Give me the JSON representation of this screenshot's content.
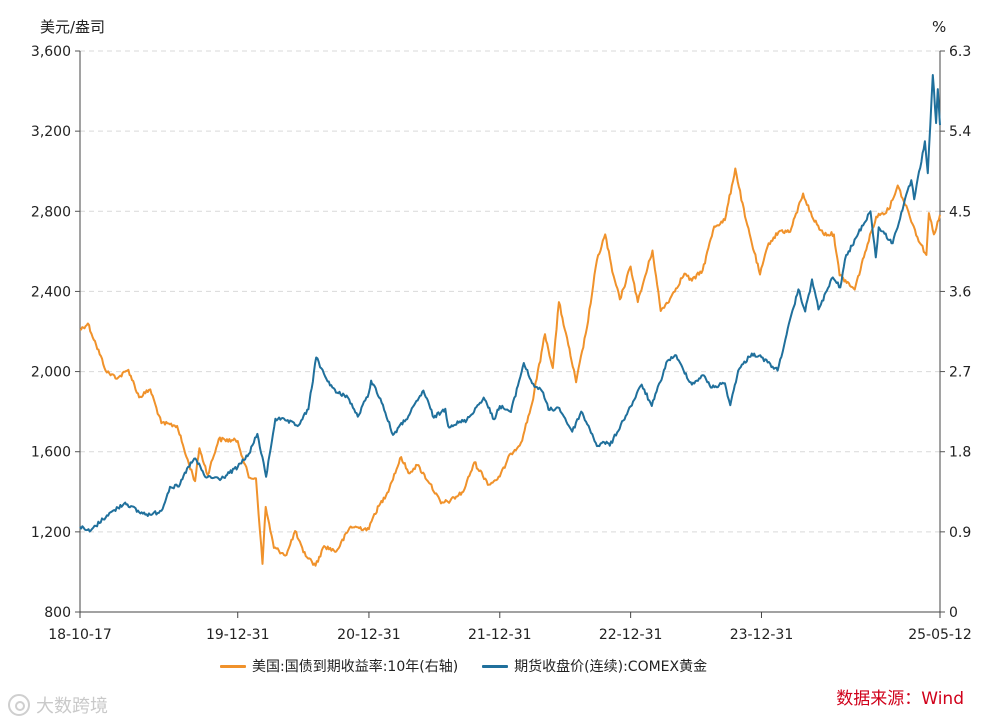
{
  "chart_data": {
    "type": "line",
    "left_unit": "美元/盎司",
    "right_unit": "%",
    "left_axis": {
      "ylim": [
        800,
        3600
      ],
      "ticks": [
        "800",
        "1,200",
        "1,600",
        "2,000",
        "2,400",
        "2,800",
        "3,200",
        "3,600"
      ]
    },
    "right_axis": {
      "ylim": [
        0,
        6.3
      ],
      "ticks": [
        "0",
        "0.9",
        "1.8",
        "2.7",
        "3.6",
        "4.5",
        "5.4",
        "6.3"
      ]
    },
    "x_range": [
      "2018-10-17",
      "2025-05-12"
    ],
    "x_ticks": [
      {
        "date": "2018-10-17",
        "label": "18-10-17"
      },
      {
        "date": "2019-12-31",
        "label": "19-12-31"
      },
      {
        "date": "2020-12-31",
        "label": "20-12-31"
      },
      {
        "date": "2021-12-31",
        "label": "21-12-31"
      },
      {
        "date": "2022-12-31",
        "label": "22-12-31"
      },
      {
        "date": "2023-12-31",
        "label": "23-12-31"
      },
      {
        "date": "2025-05-12",
        "label": "25-05-12"
      }
    ],
    "grid": "horizontal-dashed",
    "legend_position": "bottom",
    "series": [
      {
        "name": "美国:国债到期收益率:10年(右轴)",
        "axis": "right",
        "color": "#f0922b",
        "points": [
          [
            "2018-10-17",
            3.17
          ],
          [
            "2018-11-08",
            3.24
          ],
          [
            "2018-12-01",
            3.0
          ],
          [
            "2018-12-31",
            2.69
          ],
          [
            "2019-01-31",
            2.63
          ],
          [
            "2019-03-01",
            2.72
          ],
          [
            "2019-03-31",
            2.41
          ],
          [
            "2019-05-01",
            2.5
          ],
          [
            "2019-06-01",
            2.12
          ],
          [
            "2019-07-15",
            2.09
          ],
          [
            "2019-08-10",
            1.74
          ],
          [
            "2019-09-03",
            1.47
          ],
          [
            "2019-09-15",
            1.84
          ],
          [
            "2019-10-08",
            1.54
          ],
          [
            "2019-11-08",
            1.94
          ],
          [
            "2019-12-31",
            1.92
          ],
          [
            "2020-01-31",
            1.51
          ],
          [
            "2020-02-20",
            1.5
          ],
          [
            "2020-03-09",
            0.54
          ],
          [
            "2020-03-18",
            1.18
          ],
          [
            "2020-04-10",
            0.72
          ],
          [
            "2020-05-15",
            0.64
          ],
          [
            "2020-06-08",
            0.91
          ],
          [
            "2020-07-01",
            0.67
          ],
          [
            "2020-08-04",
            0.52
          ],
          [
            "2020-08-28",
            0.74
          ],
          [
            "2020-10-01",
            0.68
          ],
          [
            "2020-11-10",
            0.96
          ],
          [
            "2020-12-31",
            0.93
          ],
          [
            "2021-01-15",
            1.1
          ],
          [
            "2021-02-20",
            1.34
          ],
          [
            "2021-03-31",
            1.74
          ],
          [
            "2021-04-20",
            1.56
          ],
          [
            "2021-05-15",
            1.65
          ],
          [
            "2021-06-20",
            1.44
          ],
          [
            "2021-07-20",
            1.22
          ],
          [
            "2021-08-15",
            1.25
          ],
          [
            "2021-09-20",
            1.35
          ],
          [
            "2021-10-21",
            1.68
          ],
          [
            "2021-12-01",
            1.43
          ],
          [
            "2021-12-31",
            1.52
          ],
          [
            "2022-01-31",
            1.78
          ],
          [
            "2022-02-28",
            1.9
          ],
          [
            "2022-03-31",
            2.34
          ],
          [
            "2022-05-06",
            3.12
          ],
          [
            "2022-05-28",
            2.74
          ],
          [
            "2022-06-14",
            3.48
          ],
          [
            "2022-07-10",
            3.0
          ],
          [
            "2022-08-01",
            2.58
          ],
          [
            "2022-08-31",
            3.19
          ],
          [
            "2022-09-28",
            3.95
          ],
          [
            "2022-10-21",
            4.24
          ],
          [
            "2022-11-10",
            3.82
          ],
          [
            "2022-12-01",
            3.51
          ],
          [
            "2022-12-31",
            3.88
          ],
          [
            "2023-01-20",
            3.48
          ],
          [
            "2023-03-02",
            4.06
          ],
          [
            "2023-03-25",
            3.38
          ],
          [
            "2023-04-20",
            3.52
          ],
          [
            "2023-05-30",
            3.8
          ],
          [
            "2023-06-20",
            3.72
          ],
          [
            "2023-07-20",
            3.84
          ],
          [
            "2023-08-21",
            4.33
          ],
          [
            "2023-09-20",
            4.4
          ],
          [
            "2023-10-19",
            4.98
          ],
          [
            "2023-11-15",
            4.44
          ],
          [
            "2023-12-27",
            3.79
          ],
          [
            "2024-01-20",
            4.14
          ],
          [
            "2024-02-20",
            4.28
          ],
          [
            "2024-03-20",
            4.27
          ],
          [
            "2024-04-25",
            4.7
          ],
          [
            "2024-05-20",
            4.44
          ],
          [
            "2024-06-20",
            4.25
          ],
          [
            "2024-07-20",
            4.24
          ],
          [
            "2024-08-05",
            3.78
          ],
          [
            "2024-09-16",
            3.62
          ],
          [
            "2024-10-15",
            4.04
          ],
          [
            "2024-11-15",
            4.44
          ],
          [
            "2024-12-20",
            4.52
          ],
          [
            "2025-01-14",
            4.79
          ],
          [
            "2025-02-14",
            4.48
          ],
          [
            "2025-03-10",
            4.21
          ],
          [
            "2025-04-04",
            4.01
          ],
          [
            "2025-04-11",
            4.48
          ],
          [
            "2025-04-25",
            4.24
          ],
          [
            "2025-05-12",
            4.46
          ]
        ]
      },
      {
        "name": "期货收盘价(连续):COMEX黄金",
        "axis": "left",
        "color": "#20709c",
        "points": [
          [
            "2018-10-17",
            1225
          ],
          [
            "2018-11-13",
            1202
          ],
          [
            "2018-12-31",
            1282
          ],
          [
            "2019-01-31",
            1320
          ],
          [
            "2019-02-20",
            1346
          ],
          [
            "2019-03-31",
            1298
          ],
          [
            "2019-05-01",
            1285
          ],
          [
            "2019-06-01",
            1305
          ],
          [
            "2019-06-25",
            1425
          ],
          [
            "2019-07-20",
            1426
          ],
          [
            "2019-08-15",
            1525
          ],
          [
            "2019-09-04",
            1566
          ],
          [
            "2019-10-01",
            1475
          ],
          [
            "2019-11-15",
            1465
          ],
          [
            "2019-12-31",
            1523
          ],
          [
            "2020-01-31",
            1589
          ],
          [
            "2020-02-24",
            1689
          ],
          [
            "2020-03-19",
            1475
          ],
          [
            "2020-04-14",
            1765
          ],
          [
            "2020-05-15",
            1755
          ],
          [
            "2020-06-15",
            1728
          ],
          [
            "2020-07-15",
            1812
          ],
          [
            "2020-08-06",
            2070
          ],
          [
            "2020-08-31",
            1975
          ],
          [
            "2020-09-30",
            1895
          ],
          [
            "2020-10-30",
            1880
          ],
          [
            "2020-11-30",
            1775
          ],
          [
            "2020-12-31",
            1895
          ],
          [
            "2021-01-06",
            1955
          ],
          [
            "2021-02-01",
            1865
          ],
          [
            "2021-03-08",
            1684
          ],
          [
            "2021-04-20",
            1778
          ],
          [
            "2021-06-01",
            1905
          ],
          [
            "2021-06-30",
            1770
          ],
          [
            "2021-08-01",
            1814
          ],
          [
            "2021-08-09",
            1728
          ],
          [
            "2021-09-30",
            1758
          ],
          [
            "2021-11-16",
            1870
          ],
          [
            "2021-12-15",
            1762
          ],
          [
            "2021-12-31",
            1828
          ],
          [
            "2022-01-31",
            1798
          ],
          [
            "2022-03-08",
            2043
          ],
          [
            "2022-03-31",
            1942
          ],
          [
            "2022-05-01",
            1895
          ],
          [
            "2022-05-16",
            1809
          ],
          [
            "2022-06-15",
            1818
          ],
          [
            "2022-07-21",
            1700
          ],
          [
            "2022-08-15",
            1800
          ],
          [
            "2022-09-15",
            1688
          ],
          [
            "2022-09-28",
            1628
          ],
          [
            "2022-10-25",
            1650
          ],
          [
            "2022-11-03",
            1630
          ],
          [
            "2022-12-31",
            1826
          ],
          [
            "2023-01-31",
            1935
          ],
          [
            "2023-02-28",
            1828
          ],
          [
            "2023-04-13",
            2055
          ],
          [
            "2023-05-04",
            2082
          ],
          [
            "2023-06-20",
            1935
          ],
          [
            "2023-07-20",
            1982
          ],
          [
            "2023-08-15",
            1920
          ],
          [
            "2023-09-20",
            1942
          ],
          [
            "2023-10-05",
            1832
          ],
          [
            "2023-10-27",
            2005
          ],
          [
            "2023-12-04",
            2090
          ],
          [
            "2023-12-31",
            2071
          ],
          [
            "2024-02-14",
            2005
          ],
          [
            "2024-03-10",
            2185
          ],
          [
            "2024-04-12",
            2410
          ],
          [
            "2024-05-01",
            2300
          ],
          [
            "2024-05-20",
            2460
          ],
          [
            "2024-06-07",
            2310
          ],
          [
            "2024-07-17",
            2470
          ],
          [
            "2024-08-07",
            2420
          ],
          [
            "2024-08-20",
            2560
          ],
          [
            "2024-09-26",
            2690
          ],
          [
            "2024-10-30",
            2800
          ],
          [
            "2024-11-14",
            2570
          ],
          [
            "2024-11-22",
            2720
          ],
          [
            "2024-12-31",
            2640
          ],
          [
            "2025-01-31",
            2835
          ],
          [
            "2025-02-21",
            2955
          ],
          [
            "2025-03-01",
            2860
          ],
          [
            "2025-03-31",
            3150
          ],
          [
            "2025-04-08",
            2990
          ],
          [
            "2025-04-22",
            3480
          ],
          [
            "2025-05-01",
            3240
          ],
          [
            "2025-05-06",
            3410
          ],
          [
            "2025-05-12",
            3230
          ]
        ]
      }
    ]
  },
  "source": "数据来源：Wind",
  "watermark": "大数跨境"
}
